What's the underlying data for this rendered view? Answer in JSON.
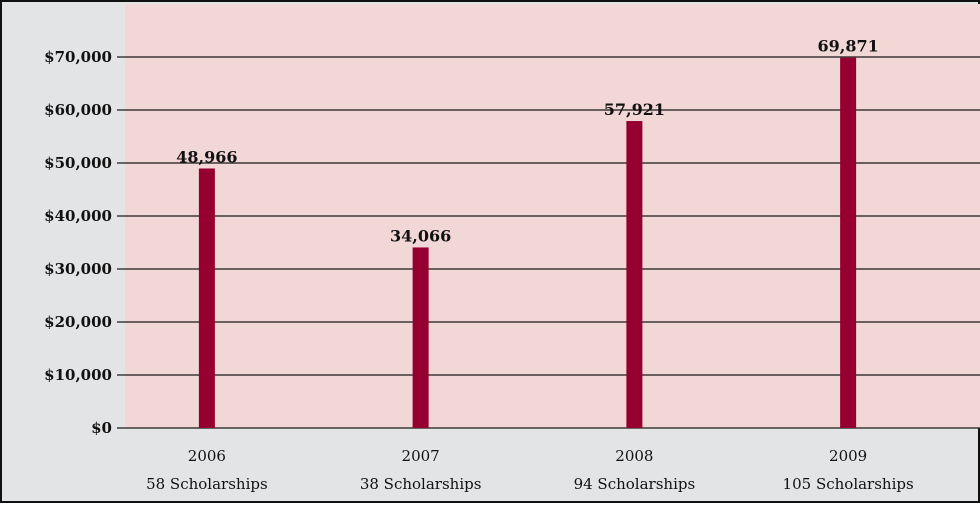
{
  "chart_data": {
    "type": "bar",
    "categories": [
      "2006",
      "2007",
      "2008",
      "2009"
    ],
    "sublabels": [
      "58 Scholarships",
      "38 Scholarships",
      "94 Scholarships",
      "105 Scholarships"
    ],
    "values": [
      48966,
      34066,
      57921,
      69871
    ],
    "value_labels": [
      "48,966",
      "34,066",
      "57,921",
      "69,871"
    ],
    "y_ticks": [
      0,
      10000,
      20000,
      30000,
      40000,
      50000,
      60000,
      70000
    ],
    "y_tick_labels": [
      "$0",
      "$10,000",
      "$20,000",
      "$30,000",
      "$40,000",
      "$50,000",
      "$60,000",
      "$70,000"
    ],
    "ylim": [
      0,
      70000
    ],
    "grid": true,
    "title": "",
    "xlabel": "",
    "ylabel": "",
    "colors": {
      "bar": "#960030",
      "plot_background": "#f1d7d6",
      "axis_background": "#e3e4e6",
      "gridline": "#1a1a1a"
    }
  }
}
